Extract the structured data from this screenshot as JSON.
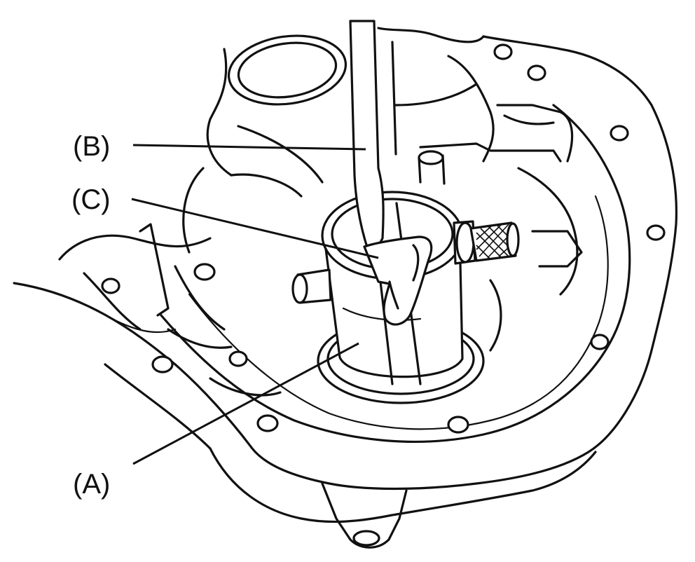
{
  "callouts": {
    "a": "(A)",
    "b": "(B)",
    "c": "(C)"
  },
  "colors": {
    "ink": "#111111",
    "paper": "#ffffff"
  }
}
